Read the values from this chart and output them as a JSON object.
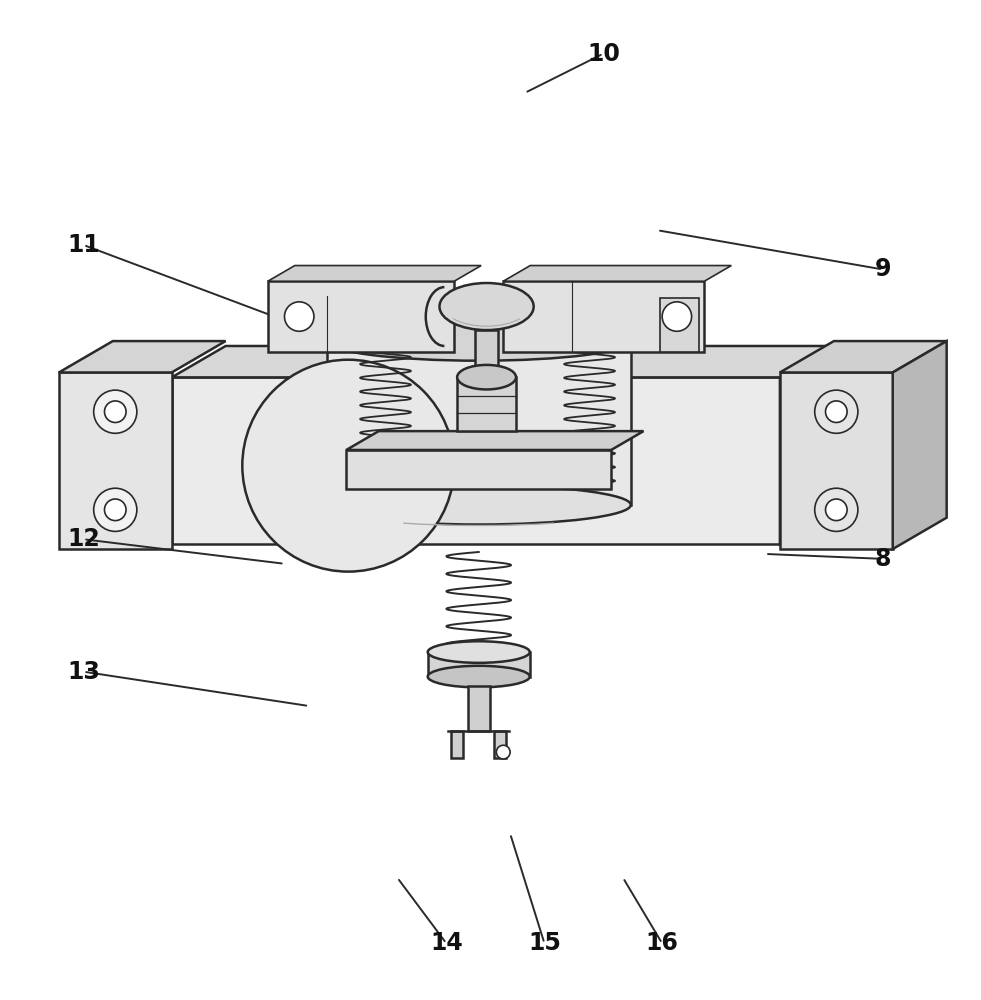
{
  "background_color": "#ffffff",
  "label_color": "#1a1a1a",
  "line_color": "#2a2a2a",
  "figsize": [
    9.81,
    10.0
  ],
  "dpi": 100,
  "labels_info": {
    "8": [
      0.9,
      0.44,
      0.78,
      0.445
    ],
    "9": [
      0.9,
      0.735,
      0.67,
      0.775
    ],
    "10": [
      0.615,
      0.955,
      0.535,
      0.915
    ],
    "11": [
      0.085,
      0.76,
      0.285,
      0.685
    ],
    "12": [
      0.085,
      0.46,
      0.29,
      0.435
    ],
    "13": [
      0.085,
      0.325,
      0.315,
      0.29
    ],
    "14": [
      0.455,
      0.048,
      0.405,
      0.115
    ],
    "15": [
      0.555,
      0.048,
      0.52,
      0.16
    ],
    "16": [
      0.675,
      0.048,
      0.635,
      0.115
    ]
  }
}
